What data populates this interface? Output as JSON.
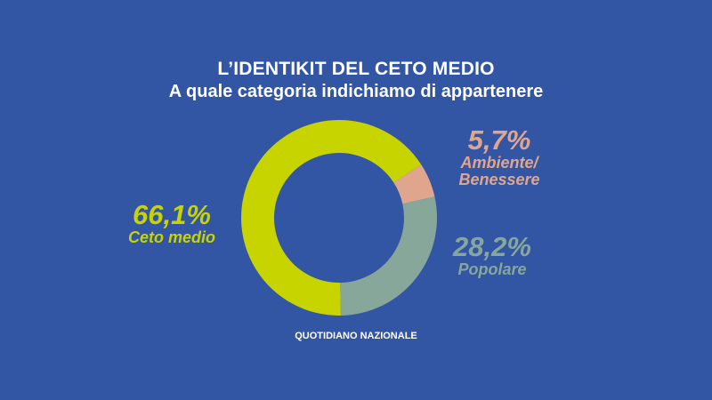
{
  "chart_data": {
    "type": "pie",
    "title": "L’IDENTIKIT DEL CETO MEDIO",
    "subtitle": "A quale categoria indichiamo di appartenere",
    "slices": [
      {
        "label": "Ambiente/ Benessere",
        "value": 5.7,
        "display": "5,7%",
        "color": "#e0a68d"
      },
      {
        "label": "Popolare",
        "value": 28.2,
        "display": "28,2%",
        "color": "#87a79a"
      },
      {
        "label": "Ceto medio",
        "value": 66.1,
        "display": "66,1%",
        "color": "#c8d400"
      }
    ]
  },
  "labels": {
    "ambiente_pct": "5,7%",
    "ambiente_line1": "Ambiente/",
    "ambiente_line2": "Benessere",
    "popolare_pct": "28,2%",
    "popolare_name": "Popolare",
    "ceto_pct": "66,1%",
    "ceto_name": "Ceto medio"
  },
  "source": "QUOTIDIANO NAZIONALE",
  "colors": {
    "background": "#3255a4",
    "text": "#ffffff"
  }
}
